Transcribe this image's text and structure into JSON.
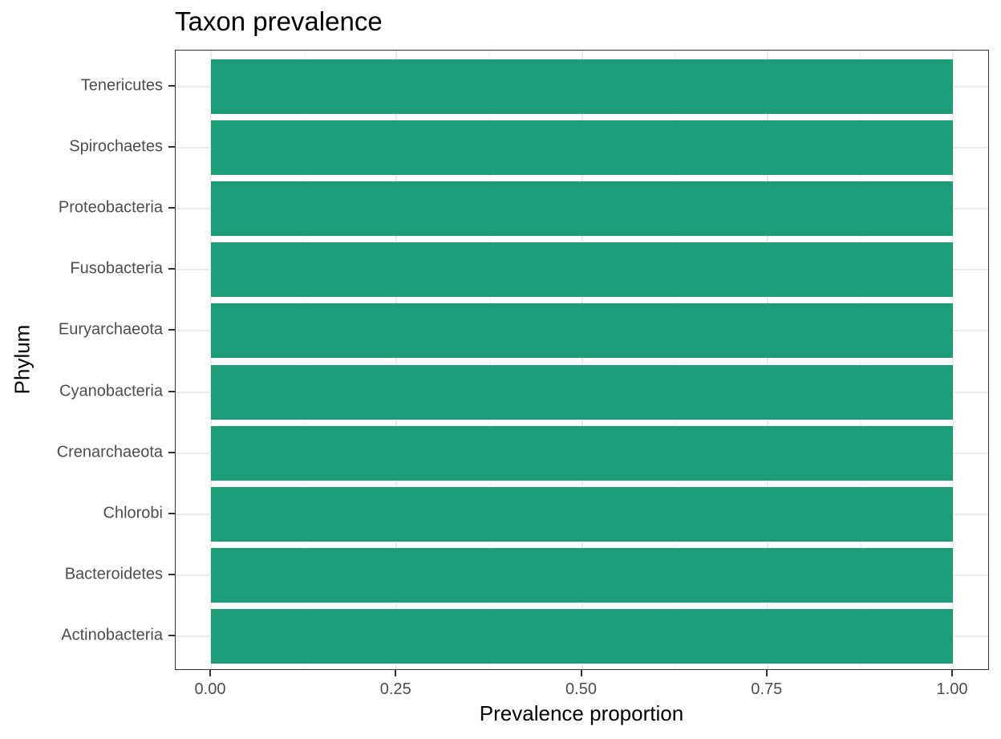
{
  "chart_data": {
    "type": "bar",
    "orientation": "horizontal",
    "title": "Taxon prevalence",
    "xlabel": "Prevalence proportion",
    "ylabel": "Phylum",
    "categories": [
      "Actinobacteria",
      "Bacteroidetes",
      "Chlorobi",
      "Crenarchaeota",
      "Cyanobacteria",
      "Euryarchaeota",
      "Fusobacteria",
      "Proteobacteria",
      "Spirochaetes",
      "Tenericutes"
    ],
    "values": [
      1.0,
      1.0,
      1.0,
      1.0,
      1.0,
      1.0,
      1.0,
      1.0,
      1.0,
      1.0
    ],
    "xlim": [
      0,
      1
    ],
    "xticks": [
      "0.00",
      "0.25",
      "0.50",
      "0.75",
      "1.00"
    ],
    "bar_color": "#1b9e77",
    "grid": true,
    "legend": null
  }
}
